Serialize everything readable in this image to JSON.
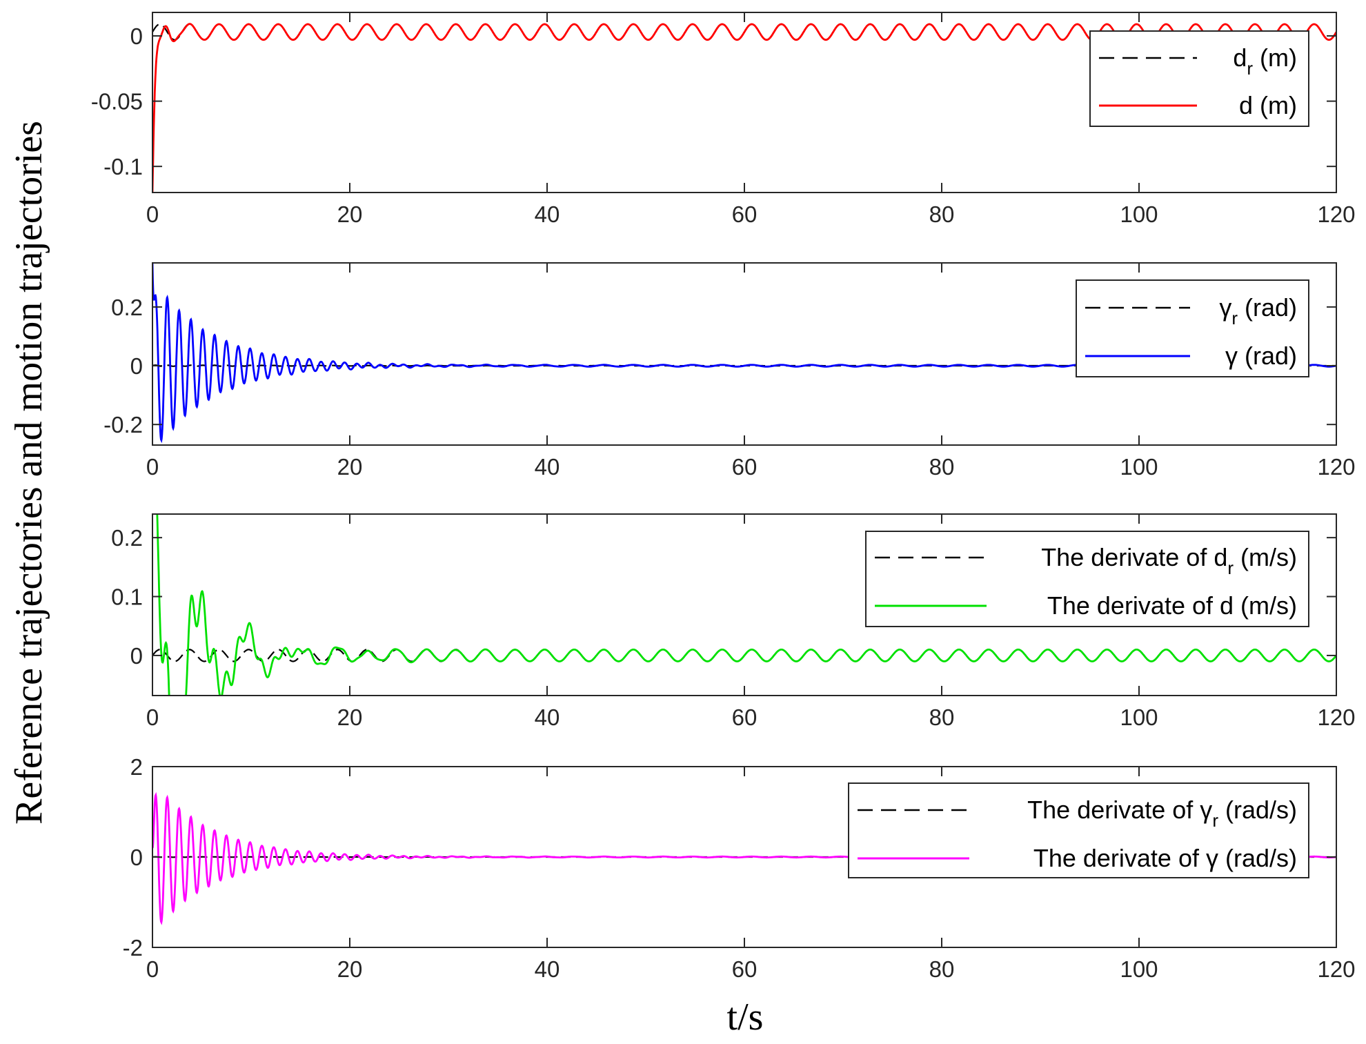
{
  "figure": {
    "ylabel": "Reference trajectories and motion trajectories",
    "xlabel": "t/s"
  },
  "chart_data": [
    {
      "type": "line",
      "x_range": [
        0,
        120
      ],
      "ylim": [
        -0.12,
        0.018
      ],
      "x_ticks": [
        "0",
        "20",
        "40",
        "60",
        "80",
        "100",
        "120"
      ],
      "y_ticks": [
        {
          "value": 0,
          "label": "0"
        },
        {
          "value": -0.05,
          "label": "-0.05"
        },
        {
          "value": -0.1,
          "label": "-0.1"
        }
      ],
      "legend_position": "top-right",
      "series": [
        {
          "name": "d_r (m)",
          "legend_main": "d",
          "legend_sub": "r",
          "legend_tail": " (m)",
          "color": "#000000",
          "style": "dashed",
          "model": {
            "base": 0.003,
            "amp": 0.006,
            "period": 3.0,
            "decay": 0,
            "phase": 0
          }
        },
        {
          "name": "d (m)",
          "legend_main": "d (m)",
          "legend_sub": "",
          "legend_tail": "",
          "color": "#ff0000",
          "style": "solid",
          "model": {
            "base": 0.003,
            "amp": 0.006,
            "period": 3.0,
            "start": -0.12,
            "settle": 0.6,
            "transAmp": 0.012,
            "transDecay": 3.0,
            "transPeriod": 1.2
          }
        }
      ]
    },
    {
      "type": "line",
      "x_range": [
        0,
        120
      ],
      "ylim": [
        -0.27,
        0.35
      ],
      "x_ticks": [
        "0",
        "20",
        "40",
        "60",
        "80",
        "100",
        "120"
      ],
      "y_ticks": [
        {
          "value": 0.2,
          "label": "0.2"
        },
        {
          "value": 0,
          "label": "0"
        },
        {
          "value": -0.2,
          "label": "-0.2"
        }
      ],
      "legend_position": "top-right",
      "series": [
        {
          "name": "γr (rad)",
          "legend_main": "γ",
          "legend_sub": "r",
          "legend_tail": " (rad)",
          "color": "#000000",
          "style": "dashed",
          "model": {
            "base": 0,
            "amp": 0.002,
            "period": 1.2,
            "decay": 0.05
          }
        },
        {
          "name": "γ (rad)",
          "legend_main": "γ (rad)",
          "legend_sub": "",
          "legend_tail": "",
          "color": "#0000ff",
          "style": "solid",
          "model": {
            "base": 0,
            "amp": 0.3,
            "period": 1.2,
            "decay": 0.17,
            "start": 0.35,
            "tail": 0.003,
            "tailPeriod": 3.0
          }
        }
      ]
    },
    {
      "type": "line",
      "x_range": [
        0,
        120
      ],
      "ylim": [
        -0.068,
        0.24
      ],
      "x_ticks": [
        "0",
        "20",
        "40",
        "60",
        "80",
        "100",
        "120"
      ],
      "y_ticks": [
        {
          "value": 0.2,
          "label": "0.2"
        },
        {
          "value": 0.1,
          "label": "0.1"
        },
        {
          "value": 0,
          "label": "0"
        }
      ],
      "legend_position": "top-right",
      "series": [
        {
          "name": "The derivate of d_r (m/s)",
          "legend_main": "The derivate of d",
          "legend_sub": "r",
          "legend_tail": " (m/s)",
          "color": "#000000",
          "style": "dashed",
          "model": {
            "base": 0,
            "amp": 0.01,
            "period": 3.0,
            "decay": 0
          }
        },
        {
          "name": "The derivate of d (m/s)",
          "legend_main": "The derivate of d (m/s)",
          "legend_sub": "",
          "legend_tail": "",
          "color": "#00e000",
          "style": "solid",
          "model": {
            "base": 0,
            "amp": 0.01,
            "period": 3.0,
            "start": 0.24,
            "transAmp": 0.1,
            "transDecay": 0.2,
            "transPeriod": 1.2
          }
        }
      ]
    },
    {
      "type": "line",
      "x_range": [
        0,
        120
      ],
      "ylim": [
        -2,
        2
      ],
      "x_ticks": [
        "0",
        "20",
        "40",
        "60",
        "80",
        "100",
        "120"
      ],
      "y_ticks": [
        {
          "value": 2,
          "label": "2"
        },
        {
          "value": 0,
          "label": "0"
        },
        {
          "value": -2,
          "label": "-2"
        }
      ],
      "legend_position": "top-right",
      "series": [
        {
          "name": "The derivate of γr (rad/s)",
          "legend_main": "The derivate of γ",
          "legend_sub": "r",
          "legend_tail": " (rad/s)",
          "color": "#000000",
          "style": "dashed",
          "model": {
            "base": 0,
            "amp": 0.005,
            "period": 1.2,
            "decay": 0.05
          }
        },
        {
          "name": "The derivate of γ (rad/s)",
          "legend_main": "The derivate of γ (rad/s)",
          "legend_sub": "",
          "legend_tail": "",
          "color": "#ff00ff",
          "style": "solid",
          "model": {
            "base": 0,
            "amp": 1.7,
            "period": 1.2,
            "decay": 0.17,
            "start": 0.2,
            "tail": 0.01,
            "tailPeriod": 3.0
          }
        }
      ]
    }
  ]
}
